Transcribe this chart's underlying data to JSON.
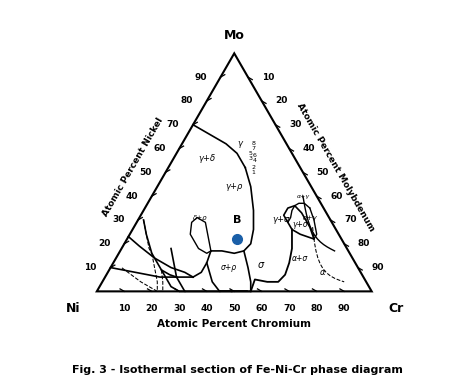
{
  "title": "Fig. 3 - Isothermal section of Fe-Ni-Cr phase diagram",
  "corner_top": "Mo",
  "corner_bl": "Ni",
  "corner_br": "Cr",
  "axis_label_bottom": "Atomic Percent Chromium",
  "axis_label_left": "Atomic Percent Nickel",
  "axis_label_right": "Atomic Percent Molybdenum",
  "tick_values": [
    10,
    20,
    30,
    40,
    50,
    60,
    70,
    80,
    90
  ],
  "point_B_ni": 38,
  "point_B_cr": 40,
  "point_B_mo": 22,
  "point_B_color": "#1a5fa8",
  "bg_color": "#ffffff",
  "figsize": [
    4.74,
    3.75
  ],
  "dpi": 100
}
